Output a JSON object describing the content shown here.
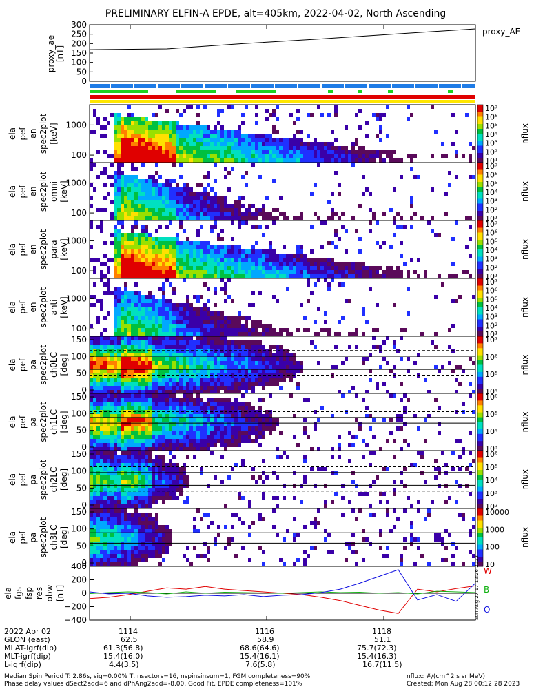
{
  "title": "PRELIMINARY ELFIN-A EPDE, alt=405km, 2022-04-02, North Ascending",
  "colors": {
    "proxy_line": "#000000",
    "bar_blue": "#1e7be6",
    "bar_green": "#1fd11f",
    "bar_red": "#e00000",
    "bar_yellow": "#ffe600",
    "bx": "#e00000",
    "by": "#10b010",
    "bz": "#1010e0"
  },
  "colormap_stops": [
    "#ffffff",
    "#5a0a5a",
    "#3a00a8",
    "#2030ff",
    "#00a8ff",
    "#00e0c0",
    "#00c040",
    "#9ae000",
    "#ffe000",
    "#ff8000",
    "#e00000"
  ],
  "panels": [
    {
      "ylabel": [
        "ela",
        "pef",
        "en",
        "spec2plot",
        "[keV]"
      ],
      "yticks": [
        "1000",
        "100"
      ],
      "cb_ticks": [
        "10⁷",
        "10⁶",
        "10⁵",
        "10⁴",
        "10³",
        "10²",
        "10¹"
      ],
      "cb_label": "nflux"
    },
    {
      "ylabel": [
        "ela",
        "pef",
        "en",
        "spec2plot",
        "omni",
        "[keV]"
      ],
      "yticks": [
        "1000",
        "100"
      ],
      "cb_ticks": [
        "10⁷",
        "10⁶",
        "10⁵",
        "10⁴",
        "10³",
        "10²",
        "10¹"
      ],
      "cb_label": "nflux"
    },
    {
      "ylabel": [
        "ela",
        "pef",
        "en",
        "spec2plot",
        "para",
        "[keV]"
      ],
      "yticks": [
        "1000",
        "100"
      ],
      "cb_ticks": [
        "10⁷",
        "10⁶",
        "10⁵",
        "10⁴",
        "10³",
        "10²",
        "10¹"
      ],
      "cb_label": "nflux"
    },
    {
      "ylabel": [
        "ela",
        "pef",
        "en",
        "spec2plot",
        "anti",
        "[keV]"
      ],
      "yticks": [
        "1000",
        "100"
      ],
      "cb_ticks": [
        "10⁷",
        "10⁶",
        "10⁵",
        "10⁴",
        "10³",
        "10²",
        "10¹"
      ],
      "cb_label": "nflux"
    },
    {
      "ylabel": [
        "ela",
        "pef",
        "pa",
        "spec2plot",
        "ch0LC",
        "[deg]"
      ],
      "yticks": [
        "150",
        "100",
        "50",
        "0"
      ],
      "cb_ticks": [
        "10⁷",
        "10⁶",
        "10⁵",
        "10⁴"
      ],
      "cb_label": "nflux"
    },
    {
      "ylabel": [
        "ela",
        "pef",
        "pa",
        "spec2plot",
        "ch1LC",
        "[deg]"
      ],
      "yticks": [
        "150",
        "100",
        "50",
        "0"
      ],
      "cb_ticks": [
        "10⁶",
        "10⁵",
        "10⁴",
        "10³"
      ],
      "cb_label": "nflux"
    },
    {
      "ylabel": [
        "ela",
        "pef",
        "pa",
        "spec2plot",
        "ch2LC",
        "[deg]"
      ],
      "yticks": [
        "150",
        "100",
        "50",
        "0"
      ],
      "cb_ticks": [
        "10⁶",
        "10⁵",
        "10⁴",
        "10³",
        "10²"
      ],
      "cb_label": "nflux"
    },
    {
      "ylabel": [
        "ela",
        "pef",
        "pa",
        "spec2plot",
        "ch3LC",
        "[deg]"
      ],
      "yticks": [
        "150",
        "100",
        "50",
        "0"
      ],
      "cb_ticks": [
        "10000",
        "1000",
        "100",
        "10"
      ],
      "cb_label": "nflux"
    }
  ],
  "chart_data": [
    {
      "type": "line",
      "ylabel": [
        "proxy_ae",
        "[nT]"
      ],
      "legend": "proxy_AE",
      "ylim": [
        0,
        300
      ],
      "yticks": [
        "300",
        "250",
        "200",
        "150",
        "100",
        "50",
        "0"
      ],
      "x": [
        0,
        0.2,
        0.4,
        0.6,
        0.8,
        1.0
      ],
      "series": [
        {
          "name": "proxy_AE",
          "values": [
            168,
            172,
            200,
            225,
            252,
            278
          ]
        }
      ]
    },
    {
      "type": "line",
      "ylabel": [
        "ela",
        "fgs",
        "fsp",
        "res",
        "obw",
        "[nT]"
      ],
      "ylim": [
        -400,
        400
      ],
      "yticks": [
        "400",
        "200",
        "0",
        "−200",
        "−400"
      ],
      "legend_labels": [
        "W",
        "B",
        "O"
      ],
      "vertical_note": "Sun Aug 27 17:12:26 2023",
      "x": [
        0,
        0.05,
        0.1,
        0.15,
        0.2,
        0.25,
        0.3,
        0.35,
        0.4,
        0.45,
        0.5,
        0.55,
        0.6,
        0.65,
        0.7,
        0.75,
        0.8,
        0.85,
        0.9,
        0.95,
        1.0
      ],
      "series": [
        {
          "name": "W",
          "values": [
            -80,
            -60,
            -20,
            30,
            80,
            60,
            100,
            60,
            40,
            20,
            0,
            -20,
            -60,
            -110,
            -180,
            -250,
            -300,
            60,
            20,
            70,
            110
          ]
        },
        {
          "name": "B",
          "values": [
            -5,
            10,
            20,
            10,
            -10,
            20,
            0,
            15,
            10,
            5,
            0,
            10,
            20,
            10,
            15,
            0,
            10,
            -10,
            30,
            20,
            10
          ]
        },
        {
          "name": "O",
          "values": [
            20,
            -10,
            0,
            -40,
            -60,
            -50,
            -30,
            -40,
            -20,
            -50,
            -30,
            -20,
            10,
            60,
            150,
            250,
            350,
            -100,
            -20,
            -120,
            150
          ]
        }
      ]
    }
  ],
  "time_axis": {
    "ticks": [
      "1114",
      "1116",
      "1118"
    ],
    "rows": [
      {
        "label": "2022 Apr 02",
        "values": [
          "1114",
          "1116",
          "1118"
        ]
      },
      {
        "label": "GLON (east)",
        "values": [
          "62.5",
          "58.9",
          "51.1"
        ]
      },
      {
        "label": "MLAT-igrf(dip)",
        "values": [
          "61.3(56.8)",
          "68.6(64.6)",
          "75.7(72.3)"
        ]
      },
      {
        "label": "MLT-igrf(dip)",
        "values": [
          "15.4(16.0)",
          "15.4(16.1)",
          "15.4(16.3)"
        ]
      },
      {
        "label": "L-igrf(dip)",
        "values": [
          "4.4(3.5)",
          "7.6(5.8)",
          "16.7(11.5)"
        ]
      }
    ]
  },
  "footer": {
    "line1_left": "Median Spin Period T: 2.86s, sig=0.00% T, nsectors=16, nspinsinsum=1, FGM completeness=90%",
    "line2_left": "Phase delay values dSect2add=6 and dPhAng2add=-8.00, Good Fit, EPDE completeness=101%",
    "line1_right": "nflux: #/(cm^2 s sr MeV)",
    "line2_right": "Created: Mon Aug 28 00:12:28 2023"
  }
}
